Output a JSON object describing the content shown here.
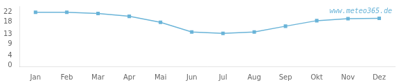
{
  "chart_data": {
    "type": "line",
    "categories": [
      "Jan",
      "Feb",
      "Mar",
      "Apr",
      "Mai",
      "Jun",
      "Jul",
      "Aug",
      "Sep",
      "Okt",
      "Nov",
      "Dez"
    ],
    "values": [
      22.0,
      22.0,
      21.5,
      20.3,
      17.8,
      13.8,
      13.2,
      13.8,
      16.2,
      18.5,
      19.3,
      19.5
    ],
    "color": "#6ab4d8",
    "marker": "square",
    "ylim": [
      -0.5,
      24.5
    ],
    "yticks": [
      0,
      4,
      9,
      13,
      18,
      22
    ],
    "grid": false,
    "annotations": [
      {
        "text": "www.meteo365.de",
        "color": "#6ab4d8"
      }
    ]
  }
}
